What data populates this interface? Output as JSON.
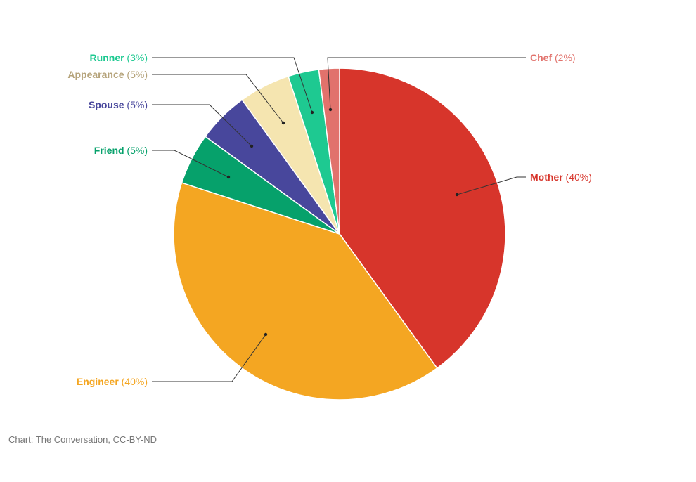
{
  "chart_data": {
    "type": "pie",
    "title": "",
    "categories": [
      "Mother",
      "Engineer",
      "Friend",
      "Spouse",
      "Appearance",
      "Runner",
      "Chef"
    ],
    "values": [
      40,
      40,
      5,
      5,
      5,
      3,
      2
    ],
    "value_labels": [
      "(40%)",
      "(40%)",
      "(5%)",
      "(5%)",
      "(5%)",
      "(3%)",
      "(2%)"
    ],
    "colors": [
      "#d7352b",
      "#f4a622",
      "#06a16b",
      "#48479c",
      "#f5e5b0",
      "#1ec991",
      "#e1726c"
    ],
    "label_colors": [
      "#d7352b",
      "#f4a622",
      "#06a16b",
      "#48479c",
      "#b5a37a",
      "#1ec991",
      "#e1726c"
    ],
    "start_angle_deg": 0,
    "direction": "clockwise",
    "legend": "none"
  },
  "credit": "Chart: The Conversation, CC-BY-ND"
}
